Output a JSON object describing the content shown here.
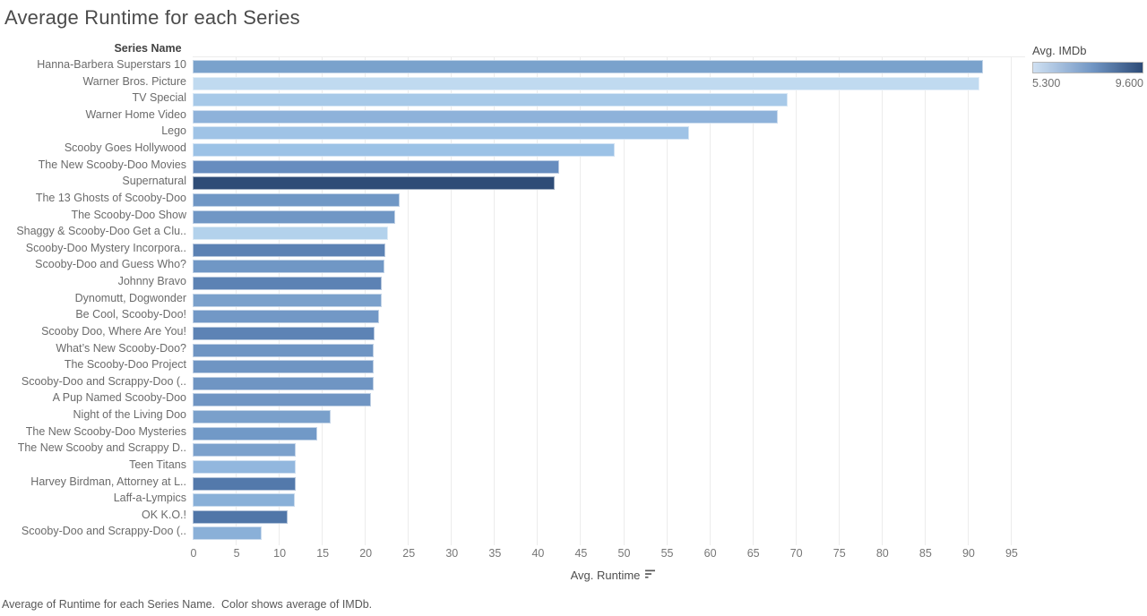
{
  "page": {
    "title": "Average Runtime for each Series",
    "caption": "Average of Runtime for each Series Name.  Color shows average of IMDb."
  },
  "legend": {
    "title": "Avg. IMDb",
    "min_label": "5.300",
    "max_label": "9.600",
    "gradient_start_color": "#cfe0f2",
    "gradient_end_color": "#2d4b77"
  },
  "chart_data": {
    "type": "bar",
    "orientation": "horizontal",
    "title": "Average Runtime for each Series",
    "row_header": "Series Name",
    "xlabel": "Avg. Runtime",
    "color_by": "Avg. IMDb",
    "color_domain": [
      5.3,
      9.6
    ],
    "x_axis": {
      "min": 0,
      "max": 95,
      "tick_step": 5,
      "ticks": [
        0,
        5,
        10,
        15,
        20,
        25,
        30,
        35,
        40,
        45,
        50,
        55,
        60,
        65,
        70,
        75,
        80,
        85,
        90,
        95
      ]
    },
    "grid": true,
    "legend_position": "top-right",
    "rows": [
      {
        "label": "Hanna-Barbera Superstars 10",
        "value": 91.8,
        "color": "#7aa2cc"
      },
      {
        "label": "Warner Bros. Picture",
        "value": 91.4,
        "color": "#c0daf0"
      },
      {
        "label": "TV Special",
        "value": 69.1,
        "color": "#a7c9e8"
      },
      {
        "label": "Warner Home Video",
        "value": 68.0,
        "color": "#8eb2da"
      },
      {
        "label": "Lego",
        "value": 57.7,
        "color": "#9fc3e6"
      },
      {
        "label": "Scooby Goes Hollywood",
        "value": 49.0,
        "color": "#9cc2e6"
      },
      {
        "label": "The New Scooby-Doo Movies",
        "value": 42.6,
        "color": "#678dbf"
      },
      {
        "label": "Supernatural",
        "value": 42.0,
        "color": "#2e4c77"
      },
      {
        "label": "The 13 Ghosts of Scooby-Doo",
        "value": 24.0,
        "color": "#7097c5"
      },
      {
        "label": "The Scooby-Doo Show",
        "value": 23.5,
        "color": "#7097c5"
      },
      {
        "label": "Shaggy & Scooby-Doo Get a Clu..",
        "value": 22.7,
        "color": "#b3d2ec"
      },
      {
        "label": "Scooby-Doo Mystery Incorpora..",
        "value": 22.4,
        "color": "#5c82b4"
      },
      {
        "label": "Scooby-Doo and Guess Who?",
        "value": 22.3,
        "color": "#7097c5"
      },
      {
        "label": "Johnny Bravo",
        "value": 22.0,
        "color": "#5c82b4"
      },
      {
        "label": "Dynomutt, Dogwonder",
        "value": 22.0,
        "color": "#7aa0cb"
      },
      {
        "label": "Be Cool, Scooby-Doo!",
        "value": 21.6,
        "color": "#7298c6"
      },
      {
        "label": "Scooby Doo, Where Are You!",
        "value": 21.1,
        "color": "#5d83b5"
      },
      {
        "label": "What’s New Scooby-Doo?",
        "value": 21.0,
        "color": "#6f95c3"
      },
      {
        "label": "The Scooby-Doo Project",
        "value": 21.0,
        "color": "#6f95c3"
      },
      {
        "label": "Scooby-Doo and Scrappy-Doo (..",
        "value": 21.0,
        "color": "#6f95c3"
      },
      {
        "label": "A Pup Named Scooby-Doo",
        "value": 20.7,
        "color": "#7095c3"
      },
      {
        "label": "Night of the Living Doo",
        "value": 16.0,
        "color": "#7aa0cb"
      },
      {
        "label": "The New Scooby-Doo Mysteries",
        "value": 14.5,
        "color": "#7199c7"
      },
      {
        "label": "The New Scooby and Scrappy D..",
        "value": 12.0,
        "color": "#7ca1cc"
      },
      {
        "label": "Teen Titans",
        "value": 12.0,
        "color": "#92b7de"
      },
      {
        "label": "Harvey Birdman, Attorney at L..",
        "value": 12.0,
        "color": "#5379ab"
      },
      {
        "label": "Laff-a-Lympics",
        "value": 11.9,
        "color": "#89b0d8"
      },
      {
        "label": "OK K.O.!",
        "value": 11.0,
        "color": "#5076a8"
      },
      {
        "label": "Scooby-Doo and Scrappy-Doo (..",
        "value": 8.0,
        "color": "#8ab0d8"
      }
    ]
  }
}
